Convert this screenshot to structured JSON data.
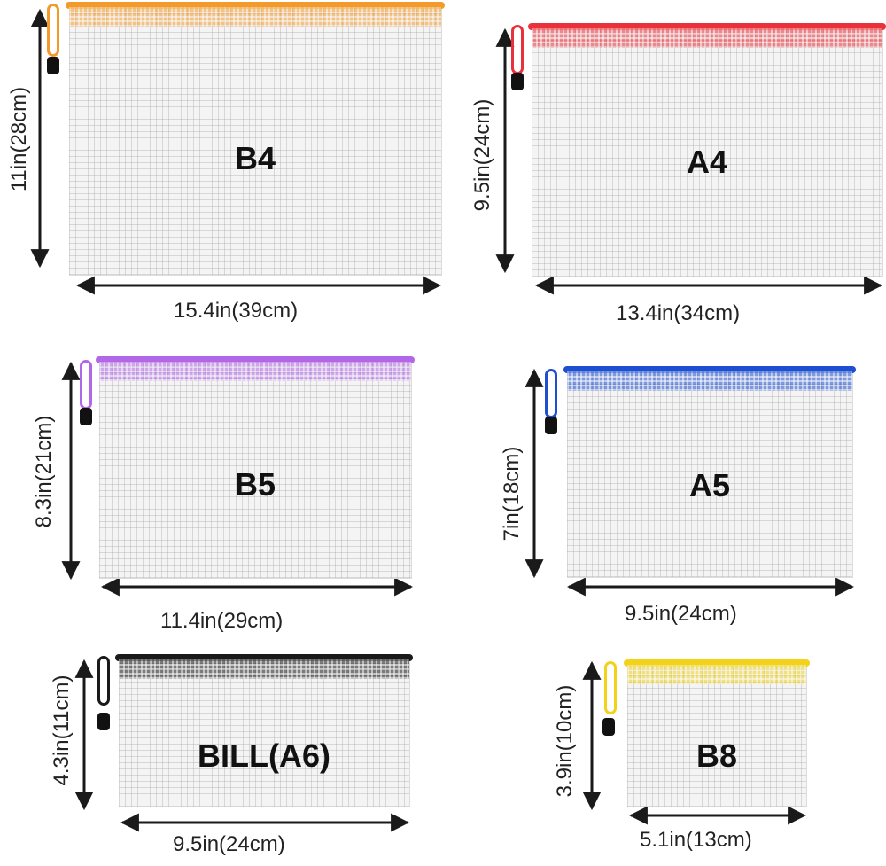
{
  "colors": {
    "b4": "#f39a2c",
    "a4": "#e8313a",
    "b5": "#b167e6",
    "a5": "#1f4fd1",
    "a6": "#1a1a1a",
    "b8": "#f2d21a",
    "text": "#222222",
    "arrow": "#1a1a1a"
  },
  "bags": [
    {
      "key": "b4",
      "label": "B4",
      "width_text": "15.4in(39cm)",
      "height_text": "11in(28cm)",
      "zipper_color": "#f39a2c"
    },
    {
      "key": "a4",
      "label": "A4",
      "width_text": "13.4in(34cm)",
      "height_text": "9.5in(24cm)",
      "zipper_color": "#e8313a"
    },
    {
      "key": "b5",
      "label": "B5",
      "width_text": "11.4in(29cm)",
      "height_text": "8.3in(21cm)",
      "zipper_color": "#b167e6"
    },
    {
      "key": "a5",
      "label": "A5",
      "width_text": "9.5in(24cm)",
      "height_text": "7in(18cm)",
      "zipper_color": "#1f4fd1"
    },
    {
      "key": "a6",
      "label": "BILL(A6)",
      "width_text": "9.5in(24cm)",
      "height_text": "4.3in(11cm)",
      "zipper_color": "#1a1a1a"
    },
    {
      "key": "b8",
      "label": "B8",
      "width_text": "5.1in(13cm)",
      "height_text": "3.9in(10cm)",
      "zipper_color": "#f2d21a"
    }
  ]
}
